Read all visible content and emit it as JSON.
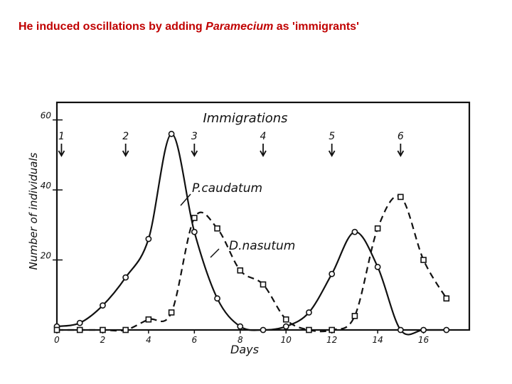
{
  "slide": {
    "title_before": "He induced oscillations by adding ",
    "title_italic": "Paramecium",
    "title_after": " as 'immigrants'"
  },
  "chart_data": {
    "type": "line",
    "title": "Immigrations",
    "xlabel": "Days",
    "ylabel": "Number of individuals",
    "xlim": [
      0,
      18
    ],
    "ylim": [
      0,
      65
    ],
    "x_ticks": [
      "0",
      "2",
      "4",
      "6",
      "8",
      "10",
      "12",
      "14",
      "16"
    ],
    "y_ticks": [
      "20",
      "40",
      "60"
    ],
    "immigrations": [
      {
        "label": "1",
        "day": 0.2
      },
      {
        "label": "2",
        "day": 3
      },
      {
        "label": "3",
        "day": 6
      },
      {
        "label": "4",
        "day": 9
      },
      {
        "label": "5",
        "day": 12
      },
      {
        "label": "6",
        "day": 15
      }
    ],
    "series": [
      {
        "name": "P.caudatum",
        "style": "solid",
        "x": [
          0,
          1,
          2,
          3,
          4,
          5,
          6,
          7,
          8,
          9,
          10,
          11,
          12,
          13,
          14,
          15,
          16,
          17
        ],
        "y": [
          1,
          2,
          7,
          15,
          26,
          56,
          28,
          9,
          1,
          0,
          1,
          5,
          16,
          28,
          18,
          0,
          0,
          0
        ]
      },
      {
        "name": "D.nasutum",
        "style": "dashed",
        "x": [
          0,
          1,
          2,
          3,
          4,
          5,
          6,
          7,
          8,
          9,
          10,
          11,
          12,
          13,
          14,
          15,
          16,
          17
        ],
        "y": [
          0,
          0,
          0,
          0,
          3,
          5,
          32,
          29,
          17,
          13,
          3,
          0,
          0,
          4,
          29,
          38,
          20,
          9
        ]
      }
    ]
  }
}
